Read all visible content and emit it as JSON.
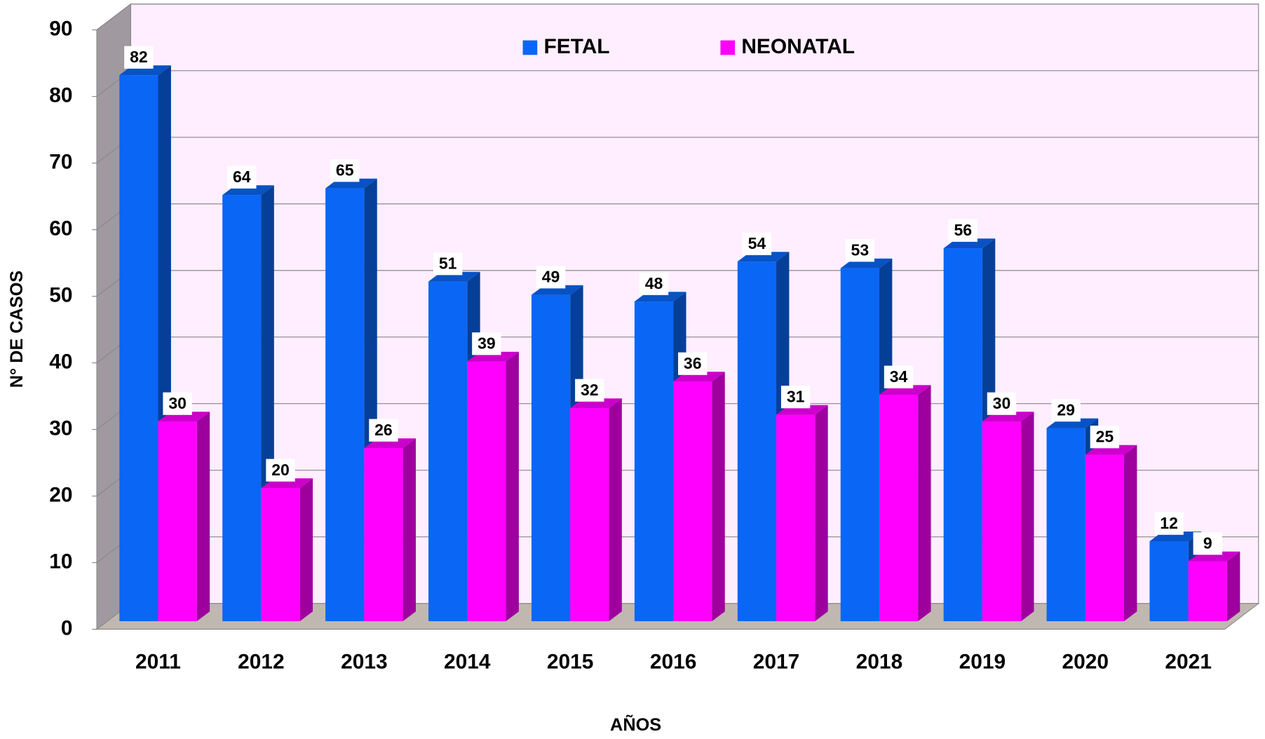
{
  "chart_data": {
    "type": "bar",
    "x_label": "AÑOS",
    "y_label": "N° DE CASOS",
    "categories": [
      "2011",
      "2012",
      "2013",
      "2014",
      "2015",
      "2016",
      "2017",
      "2018",
      "2019",
      "2020",
      "2021"
    ],
    "series": [
      {
        "name": "FETAL",
        "color": "#0a66f5",
        "values": [
          82,
          64,
          65,
          51,
          49,
          48,
          54,
          53,
          56,
          29,
          12
        ]
      },
      {
        "name": "NEONATAL",
        "color": "#ff00ff",
        "values": [
          30,
          20,
          26,
          39,
          32,
          36,
          31,
          34,
          30,
          25,
          9
        ]
      }
    ],
    "ylim": [
      0,
      90
    ],
    "yticks": [
      0,
      10,
      20,
      30,
      40,
      50,
      60,
      70,
      80,
      90
    ],
    "grid": true,
    "legend": "top"
  }
}
